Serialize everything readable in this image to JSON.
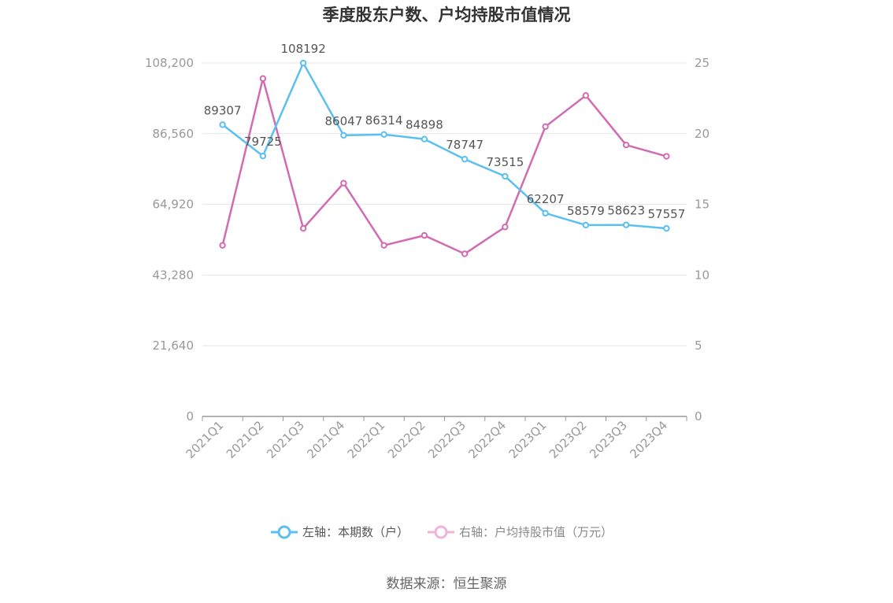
{
  "chart_data": {
    "type": "line",
    "title": "季度股东户数、户均持股市值情况",
    "categories": [
      "2021Q1",
      "2021Q2",
      "2021Q3",
      "2021Q4",
      "2022Q1",
      "2022Q2",
      "2022Q3",
      "2022Q4",
      "2023Q1",
      "2023Q2",
      "2023Q3",
      "2023Q4"
    ],
    "left_axis": {
      "ticks": [
        "0",
        "21,640",
        "43,280",
        "64,920",
        "86,560",
        "108,200"
      ],
      "ylim": [
        0,
        108200
      ]
    },
    "right_axis": {
      "ticks": [
        "0",
        "5",
        "10",
        "15",
        "20",
        "25"
      ],
      "ylim": [
        0,
        25
      ]
    },
    "series": [
      {
        "name": "左轴：本期数（户）",
        "axis": "left",
        "color": "#5bbff0",
        "values": [
          89307,
          79725,
          108192,
          86047,
          86314,
          84898,
          78747,
          73515,
          62207,
          58579,
          58623,
          57557
        ],
        "labels": [
          "89307",
          "79725",
          "108192",
          "86047",
          "86314",
          "84898",
          "78747",
          "73515",
          "62207",
          "58579",
          "58623",
          "57557"
        ]
      },
      {
        "name": "右轴：户均持股市值（万元）",
        "axis": "right",
        "color": "#d16bb2",
        "values": [
          12.1,
          23.9,
          13.3,
          16.5,
          12.1,
          12.8,
          11.5,
          13.4,
          20.5,
          22.7,
          19.2,
          18.4
        ]
      }
    ],
    "legend": "bottom-center",
    "grid": true
  },
  "source": "数据来源：恒生聚源"
}
